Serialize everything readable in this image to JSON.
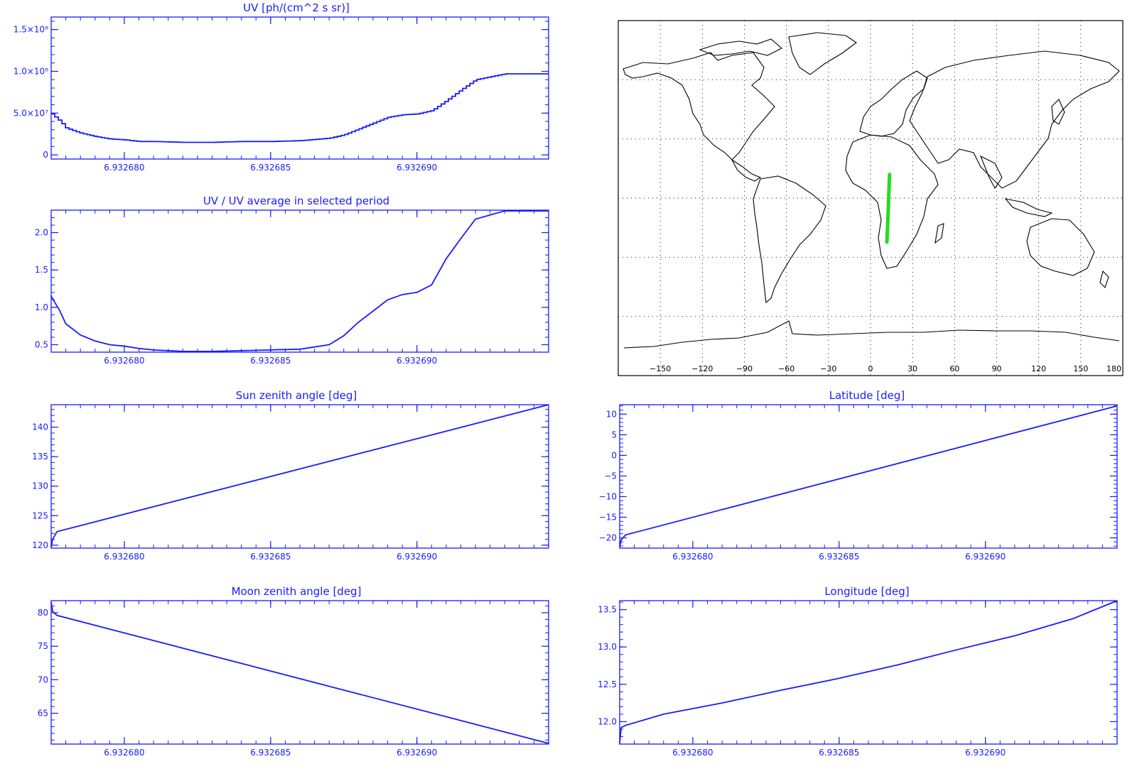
{
  "colors": {
    "plot": "#1a1aff",
    "map_line": "#000000",
    "track": "#22dd22",
    "background": "#ffffff"
  },
  "x_axis": {
    "range": [
      6.9326775,
      6.9326945
    ],
    "ticks": [
      6.93268,
      6.932685,
      6.93269
    ],
    "tick_labels": [
      "6.932680",
      "6.932685",
      "6.932690"
    ]
  },
  "chart_data": [
    {
      "id": "uv",
      "type": "line",
      "title": "UV [ph/(cm^2 s sr)]",
      "ylim": [
        -5000000.0,
        165000000.0
      ],
      "y_ticks": [
        0,
        50000000.0,
        100000000.0,
        150000000.0
      ],
      "y_tick_labels": [
        "0",
        "5.0×10⁷",
        "1.0×10⁸",
        "1.5×10⁸"
      ],
      "step": true,
      "series": [
        {
          "x": [
            6.9326775,
            6.9326778,
            6.932678,
            6.9326785,
            6.932679,
            6.9326795,
            6.93268,
            6.9326805,
            6.932681,
            6.932682,
            6.932683,
            6.932684,
            6.932685,
            6.932686,
            6.932687,
            6.9326875,
            6.932688,
            6.9326885,
            6.932689,
            6.9326895,
            6.93269,
            6.9326905,
            6.932691,
            6.9326915,
            6.932692,
            6.932693,
            6.932694,
            6.9326945
          ],
          "y": [
            49000000.0,
            40000000.0,
            32000000.0,
            26000000.0,
            22000000.0,
            19000000.0,
            18000000.0,
            16000000.0,
            16000000.0,
            15000000.0,
            15000000.0,
            16000000.0,
            16000000.0,
            17000000.0,
            20000000.0,
            24000000.0,
            31000000.0,
            38000000.0,
            45000000.0,
            48000000.0,
            49000000.0,
            53000000.0,
            65000000.0,
            78000000.0,
            90000000.0,
            97000000.0,
            97000000.0,
            97000000.0
          ]
        }
      ]
    },
    {
      "id": "uv-ratio",
      "type": "line",
      "title": "UV / UV average in selected period",
      "ylim": [
        0.4,
        2.3
      ],
      "y_ticks": [
        0.5,
        1.0,
        1.5,
        2.0
      ],
      "y_tick_labels": [
        "0.5",
        "1.0",
        "1.5",
        "2.0"
      ],
      "series": [
        {
          "x": [
            6.9326775,
            6.9326778,
            6.932678,
            6.9326785,
            6.932679,
            6.9326795,
            6.93268,
            6.9326805,
            6.932681,
            6.932682,
            6.932683,
            6.932684,
            6.932685,
            6.932686,
            6.932687,
            6.9326875,
            6.932688,
            6.9326885,
            6.932689,
            6.9326895,
            6.93269,
            6.9326905,
            6.932691,
            6.9326915,
            6.932692,
            6.932693,
            6.932694,
            6.9326945
          ],
          "y": [
            1.15,
            0.95,
            0.78,
            0.63,
            0.55,
            0.5,
            0.48,
            0.45,
            0.43,
            0.41,
            0.41,
            0.42,
            0.43,
            0.44,
            0.5,
            0.62,
            0.8,
            0.95,
            1.1,
            1.17,
            1.2,
            1.3,
            1.65,
            1.92,
            2.18,
            2.29,
            2.29,
            2.29
          ]
        }
      ]
    },
    {
      "id": "sun-zenith",
      "type": "line",
      "title": "Sun zenith angle [deg]",
      "ylim": [
        119.5,
        143.8
      ],
      "y_ticks": [
        120,
        125,
        130,
        135,
        140
      ],
      "y_tick_labels": [
        "120",
        "125",
        "130",
        "135",
        "140"
      ],
      "series": [
        {
          "x": [
            6.9326775,
            6.93267755,
            6.9326777,
            6.9326945
          ],
          "y": [
            119.6,
            121.0,
            122.3,
            143.8
          ]
        }
      ]
    },
    {
      "id": "latitude",
      "type": "line",
      "title": "Latitude [deg]",
      "ylim": [
        -22.5,
        12.3
      ],
      "y_ticks": [
        -20,
        -15,
        -10,
        -5,
        0,
        5,
        10
      ],
      "y_tick_labels": [
        "−20",
        "−15",
        "−10",
        "−5",
        "0",
        "5",
        "10"
      ],
      "series": [
        {
          "x": [
            6.9326775,
            6.93267755,
            6.9326777,
            6.9326945
          ],
          "y": [
            -22.3,
            -20.5,
            -19.3,
            12.0
          ]
        }
      ]
    },
    {
      "id": "moon-zenith",
      "type": "line",
      "title": "Moon zenith angle [deg]",
      "ylim": [
        60.4,
        81.8
      ],
      "y_ticks": [
        65,
        70,
        75,
        80
      ],
      "y_tick_labels": [
        "65",
        "70",
        "75",
        "80"
      ],
      "series": [
        {
          "x": [
            6.9326775,
            6.93267755,
            6.9326777,
            6.9326945
          ],
          "y": [
            81.6,
            80.2,
            79.6,
            60.5
          ]
        }
      ]
    },
    {
      "id": "longitude",
      "type": "line",
      "title": "Longitude [deg]",
      "ylim": [
        11.7,
        13.62
      ],
      "y_ticks": [
        12.0,
        12.5,
        13.0,
        13.5
      ],
      "y_tick_labels": [
        "12.0",
        "12.5",
        "13.0",
        "13.5"
      ],
      "series": [
        {
          "x": [
            6.9326775,
            6.93267755,
            6.9326777,
            6.932679,
            6.932681,
            6.932683,
            6.932685,
            6.932687,
            6.932689,
            6.932691,
            6.932693,
            6.9326945
          ],
          "y": [
            11.71,
            11.92,
            11.95,
            12.1,
            12.25,
            12.42,
            12.58,
            12.76,
            12.96,
            13.15,
            13.38,
            13.62
          ]
        }
      ]
    }
  ],
  "map": {
    "x_ticks": [
      -150,
      -120,
      -90,
      -60,
      -30,
      0,
      30,
      60,
      90,
      120,
      150,
      180
    ],
    "x_tick_labels": [
      "−150",
      "−120",
      "−90",
      "−60",
      "−30",
      "0",
      "30",
      "60",
      "90",
      "120",
      "150",
      "180"
    ],
    "lon_range": [
      -180,
      180
    ],
    "lat_range": [
      -90,
      90
    ],
    "track": {
      "lon": [
        11.7,
        12.2,
        12.7,
        13.1,
        13.6
      ],
      "lat": [
        -22.3,
        -14,
        -5,
        3,
        12.0
      ]
    }
  }
}
